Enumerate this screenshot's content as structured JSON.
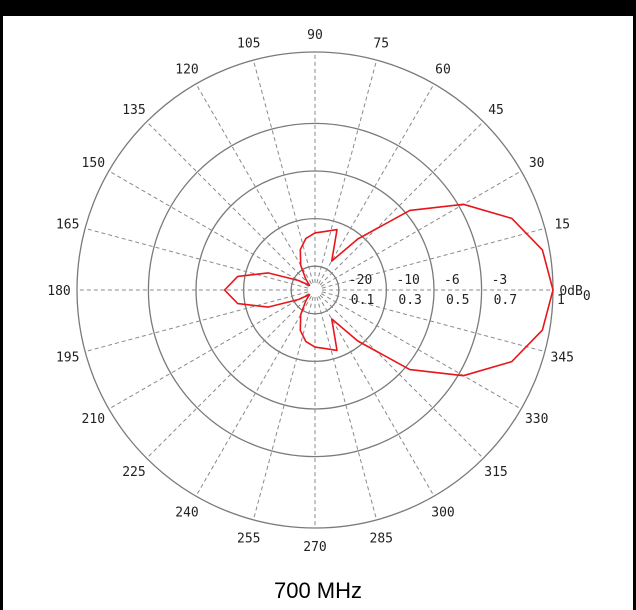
{
  "caption": "700 MHz",
  "chart_data": {
    "type": "polar",
    "angle_unit": "degrees",
    "angle_ticks": [
      "0dB0",
      "15",
      "30",
      "45",
      "60",
      "75",
      "90",
      "105",
      "120",
      "135",
      "150",
      "165",
      "180",
      "195",
      "210",
      "225",
      "240",
      "255",
      "270",
      "285",
      "300",
      "315",
      "330",
      "345"
    ],
    "radial_db_ticks": [
      "-20",
      "-10",
      "-6",
      "-3"
    ],
    "radial_linear_ticks": [
      "0.1",
      "0.3",
      "0.5",
      "0.7",
      "1"
    ],
    "rings_linear": [
      0.1,
      0.3,
      0.5,
      0.7,
      1.0
    ],
    "grid": true,
    "series": [
      {
        "color": "#e8161b",
        "radial_scale": "linear",
        "points": [
          [
            0,
            1.0
          ],
          [
            10,
            0.97
          ],
          [
            20,
            0.88
          ],
          [
            30,
            0.72
          ],
          [
            40,
            0.52
          ],
          [
            50,
            0.28
          ],
          [
            60,
            0.14
          ],
          [
            70,
            0.27
          ],
          [
            80,
            0.25
          ],
          [
            90,
            0.24
          ],
          [
            100,
            0.22
          ],
          [
            110,
            0.18
          ],
          [
            120,
            0.12
          ],
          [
            130,
            0.06
          ],
          [
            140,
            0.03
          ],
          [
            150,
            0.08
          ],
          [
            160,
            0.21
          ],
          [
            170,
            0.33
          ],
          [
            180,
            0.38
          ],
          [
            190,
            0.33
          ],
          [
            200,
            0.21
          ],
          [
            210,
            0.08
          ],
          [
            220,
            0.03
          ],
          [
            230,
            0.06
          ],
          [
            240,
            0.12
          ],
          [
            250,
            0.18
          ],
          [
            260,
            0.22
          ],
          [
            270,
            0.24
          ],
          [
            280,
            0.25
          ],
          [
            290,
            0.27
          ],
          [
            300,
            0.14
          ],
          [
            310,
            0.28
          ],
          [
            320,
            0.52
          ],
          [
            330,
            0.72
          ],
          [
            340,
            0.88
          ],
          [
            350,
            0.97
          ],
          [
            360,
            1.0
          ]
        ]
      }
    ]
  }
}
